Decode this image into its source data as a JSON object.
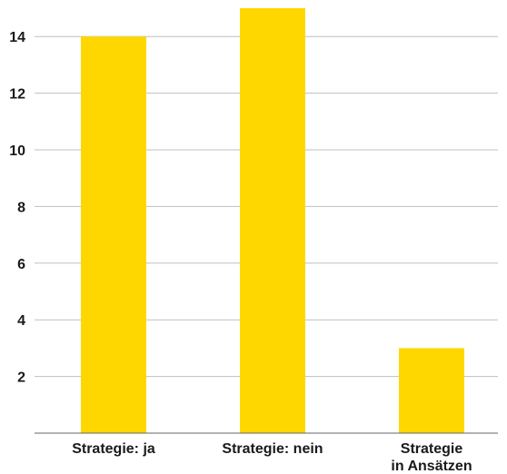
{
  "chart_data": {
    "type": "bar",
    "categories": [
      [
        "Strategie: ja"
      ],
      [
        "Strategie: nein"
      ],
      [
        "Strategie",
        "in Ansätzen"
      ]
    ],
    "values": [
      14,
      15,
      3
    ],
    "ylim": [
      0,
      15
    ],
    "yticks": [
      2,
      4,
      6,
      8,
      10,
      12,
      14
    ],
    "title": "",
    "xlabel": "",
    "ylabel": "",
    "grid": true,
    "legend": "none",
    "bar_color": "#FFD700",
    "grid_color": "#bfbfbf",
    "axis_color": "#666666"
  }
}
